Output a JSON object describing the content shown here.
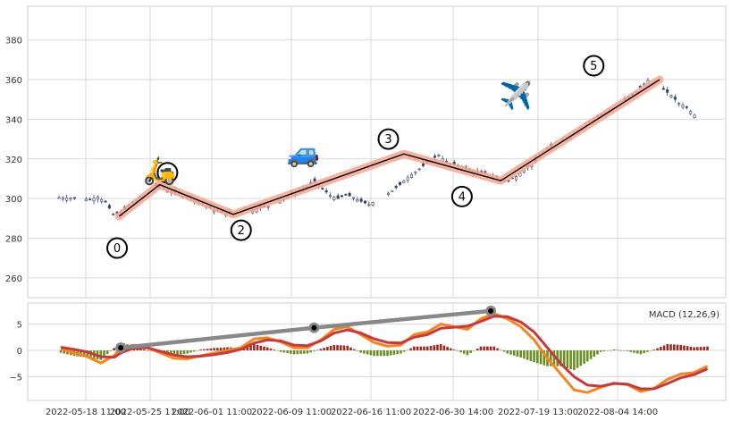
{
  "chart_data": [
    {
      "type": "candlestick",
      "panel": "price",
      "y_ticks": [
        260,
        280,
        300,
        320,
        340,
        360,
        380
      ],
      "ylim": [
        250,
        397
      ],
      "x_count": 165,
      "grid": true,
      "close_path": [
        [
          0,
          300.5
        ],
        [
          3,
          300.2
        ],
        [
          6,
          299.8
        ],
        [
          8,
          299.5
        ],
        [
          10,
          300.8
        ],
        [
          12,
          298.2
        ],
        [
          14,
          292.0
        ],
        [
          16,
          292.8
        ],
        [
          18,
          296.5
        ],
        [
          20,
          299.2
        ],
        [
          22,
          302.0
        ],
        [
          24,
          306.5
        ],
        [
          26,
          306.0
        ],
        [
          28,
          304.0
        ],
        [
          30,
          303.0
        ],
        [
          33,
          301.5
        ],
        [
          36,
          298.5
        ],
        [
          39,
          295.0
        ],
        [
          42,
          293.0
        ],
        [
          44,
          292.5
        ],
        [
          46,
          293.0
        ],
        [
          48,
          295.5
        ],
        [
          50,
          294.0
        ],
        [
          52,
          295.5
        ],
        [
          54,
          296.0
        ],
        [
          56,
          298.0
        ],
        [
          58,
          300.0
        ],
        [
          60,
          302.0
        ],
        [
          62,
          304.0
        ],
        [
          64,
          306.0
        ],
        [
          66,
          308.5
        ],
        [
          68,
          305.0
        ],
        [
          70,
          301.5
        ],
        [
          72,
          300.0
        ],
        [
          74,
          302.0
        ],
        [
          76,
          300.5
        ],
        [
          78,
          298.5
        ],
        [
          80,
          297.0
        ],
        [
          82,
          299.0
        ],
        [
          84,
          301.5
        ],
        [
          86,
          304.0
        ],
        [
          88,
          307.0
        ],
        [
          90,
          310.5
        ],
        [
          92,
          313.5
        ],
        [
          94,
          316.5
        ],
        [
          96,
          319.5
        ],
        [
          98,
          322.0
        ],
        [
          100,
          318.0
        ],
        [
          102,
          317.0
        ],
        [
          104,
          316.0
        ],
        [
          106,
          314.5
        ],
        [
          108,
          313.0
        ],
        [
          110,
          312.5
        ],
        [
          112,
          311.0
        ],
        [
          114,
          310.0
        ],
        [
          116,
          309.0
        ],
        [
          118,
          311.0
        ],
        [
          120,
          314.5
        ],
        [
          122,
          317.0
        ],
        [
          124,
          321.0
        ],
        [
          126,
          325.0
        ],
        [
          128,
          327.0
        ],
        [
          130,
          329.0
        ],
        [
          132,
          331.5
        ],
        [
          134,
          334.0
        ],
        [
          136,
          338.0
        ],
        [
          138,
          340.0
        ],
        [
          140,
          342.5
        ],
        [
          142,
          344.0
        ],
        [
          144,
          346.5
        ],
        [
          146,
          349.5
        ],
        [
          148,
          352.0
        ],
        [
          150,
          356.0
        ],
        [
          152,
          359.5
        ],
        [
          154,
          357.0
        ],
        [
          156,
          355.0
        ],
        [
          158,
          352.0
        ],
        [
          160,
          348.0
        ],
        [
          162,
          346.0
        ],
        [
          164,
          342.0
        ]
      ],
      "gaps": [
        [
          5,
          6
        ],
        [
          22,
          24
        ],
        [
          55,
          56
        ],
        [
          82,
          84
        ],
        [
          128,
          129
        ],
        [
          144,
          145
        ],
        [
          153,
          155
        ]
      ],
      "zigzag": {
        "labels": [
          "0",
          "1",
          "2",
          "3",
          "4",
          "5"
        ],
        "points": [
          [
            15.5,
            291
          ],
          [
            26,
            307
          ],
          [
            45,
            292
          ],
          [
            89,
            322.5
          ],
          [
            114,
            309
          ],
          [
            155,
            360
          ]
        ]
      },
      "annotations": [
        {
          "label": "0",
          "x_idx": 15,
          "y": 275
        },
        {
          "label": "1",
          "x_idx": 28,
          "y": 313
        },
        {
          "label": "2",
          "x_idx": 47,
          "y": 284
        },
        {
          "label": "3",
          "x_idx": 85,
          "y": 330
        },
        {
          "label": "4",
          "x_idx": 104,
          "y": 301
        },
        {
          "label": "5",
          "x_idx": 138,
          "y": 367
        }
      ],
      "emojis": [
        {
          "icon": "🛵",
          "name": "scooter-icon",
          "x_idx": 26,
          "y": 314
        },
        {
          "icon": "🚙",
          "name": "car-icon",
          "x_idx": 63,
          "y": 323
        },
        {
          "icon": "✈️",
          "name": "airplane-icon",
          "x_idx": 118,
          "y": 352
        }
      ]
    },
    {
      "type": "macd",
      "panel": "indicator",
      "title": "MACD (12,26,9)",
      "y_ticks": [
        -5,
        0,
        5
      ],
      "ylim": [
        -9.5,
        9
      ],
      "macd": [
        [
          0,
          0.3
        ],
        [
          4,
          -0.5
        ],
        [
          8,
          -1.2
        ],
        [
          12,
          -2.4
        ],
        [
          16,
          -1.0
        ],
        [
          18,
          0.5
        ],
        [
          22,
          1.0
        ],
        [
          26,
          0.5
        ],
        [
          30,
          -0.5
        ],
        [
          34,
          -1.5
        ],
        [
          38,
          -1.6
        ],
        [
          42,
          -1.0
        ],
        [
          46,
          -0.5
        ],
        [
          50,
          0.0
        ],
        [
          54,
          0.5
        ],
        [
          58,
          2.2
        ],
        [
          62,
          2.4
        ],
        [
          66,
          1.6
        ],
        [
          70,
          0.5
        ],
        [
          74,
          0.5
        ],
        [
          78,
          2.0
        ],
        [
          82,
          4.0
        ],
        [
          86,
          4.5
        ],
        [
          90,
          3.0
        ],
        [
          94,
          1.5
        ],
        [
          98,
          0.8
        ],
        [
          102,
          1.0
        ],
        [
          106,
          3.0
        ],
        [
          110,
          3.5
        ],
        [
          114,
          5.0
        ],
        [
          118,
          4.5
        ],
        [
          122,
          4.0
        ],
        [
          126,
          6.0
        ],
        [
          130,
          7.0
        ],
        [
          134,
          6.0
        ],
        [
          138,
          4.5
        ],
        [
          142,
          2.0
        ],
        [
          146,
          -1.5
        ],
        [
          150,
          -4.5
        ],
        [
          154,
          -7.5
        ],
        [
          158,
          -8.0
        ],
        [
          162,
          -7.0
        ],
        [
          166,
          -6.2
        ],
        [
          170,
          -6.5
        ],
        [
          174,
          -7.8
        ],
        [
          178,
          -7.2
        ],
        [
          182,
          -5.5
        ],
        [
          186,
          -4.5
        ],
        [
          190,
          -4.2
        ],
        [
          194,
          -3.0
        ]
      ],
      "signal": [
        [
          0,
          0.6
        ],
        [
          4,
          0.2
        ],
        [
          8,
          -0.3
        ],
        [
          12,
          -1.2
        ],
        [
          16,
          -1.3
        ],
        [
          18,
          -0.5
        ],
        [
          22,
          0.5
        ],
        [
          26,
          0.5
        ],
        [
          30,
          -0.2
        ],
        [
          34,
          -0.9
        ],
        [
          38,
          -1.2
        ],
        [
          42,
          -1.1
        ],
        [
          46,
          -0.8
        ],
        [
          50,
          -0.4
        ],
        [
          54,
          0.2
        ],
        [
          58,
          1.4
        ],
        [
          62,
          2.0
        ],
        [
          66,
          1.8
        ],
        [
          70,
          1.0
        ],
        [
          74,
          0.9
        ],
        [
          78,
          1.8
        ],
        [
          82,
          3.3
        ],
        [
          86,
          3.9
        ],
        [
          90,
          3.3
        ],
        [
          94,
          2.2
        ],
        [
          98,
          1.5
        ],
        [
          102,
          1.4
        ],
        [
          106,
          2.5
        ],
        [
          110,
          3.0
        ],
        [
          114,
          4.2
        ],
        [
          118,
          4.4
        ],
        [
          122,
          4.6
        ],
        [
          126,
          5.5
        ],
        [
          130,
          6.5
        ],
        [
          134,
          6.4
        ],
        [
          138,
          5.4
        ],
        [
          142,
          3.5
        ],
        [
          146,
          0.5
        ],
        [
          150,
          -2.5
        ],
        [
          154,
          -5.0
        ],
        [
          158,
          -6.6
        ],
        [
          162,
          -6.8
        ],
        [
          166,
          -6.3
        ],
        [
          170,
          -6.4
        ],
        [
          174,
          -7.3
        ],
        [
          178,
          -7.3
        ],
        [
          182,
          -6.3
        ],
        [
          186,
          -5.2
        ],
        [
          190,
          -4.6
        ],
        [
          194,
          -3.5
        ]
      ],
      "divergence_line": [
        [
          18,
          0.5
        ],
        [
          76,
          4.3
        ],
        [
          129,
          7.5
        ]
      ],
      "x_tick_labels": [
        "2022-05-18 11:00",
        "2022-05-25 11:00",
        "2022-06-01 11:00",
        "2022-06-09 11:00",
        "2022-06-16 11:00",
        "2022-06-30 14:00",
        "2022-07-19 13:00",
        "2022-08-04 14:00"
      ],
      "x_tick_positions": [
        0,
        15,
        33,
        53,
        73,
        93,
        117,
        138
      ]
    }
  ]
}
